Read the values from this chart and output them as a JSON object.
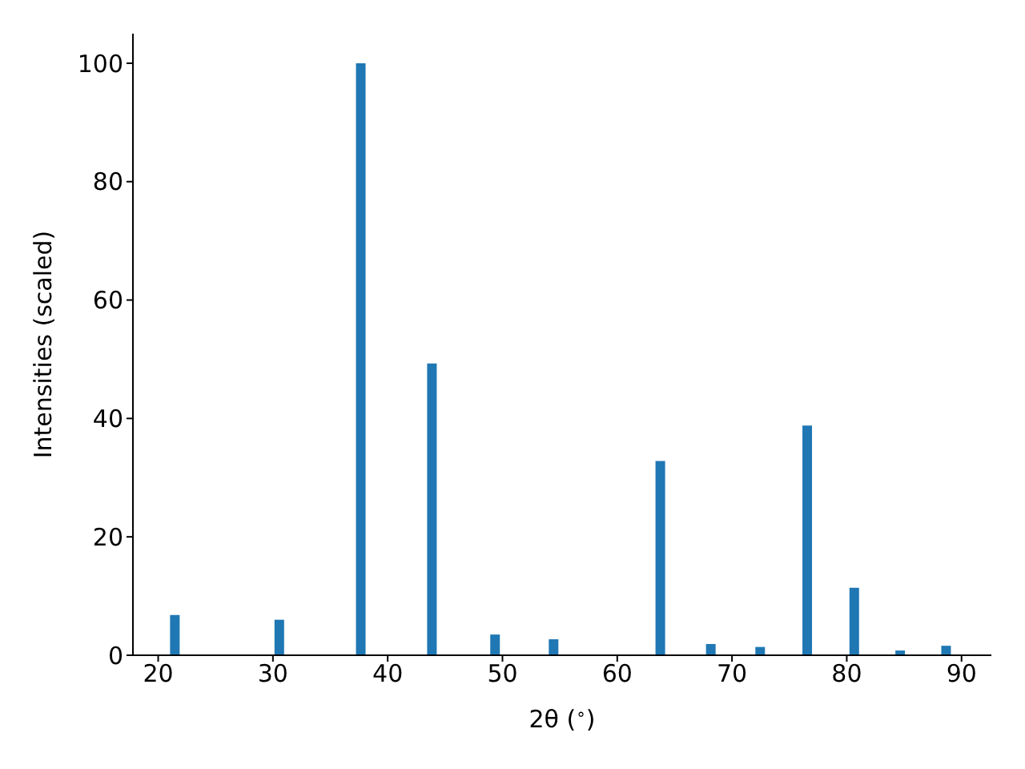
{
  "chart_data": {
    "type": "bar",
    "xlabel": "2θ ($^{∘}$)",
    "ylabel": "Intensities (scaled)",
    "x": [
      21.5,
      30.6,
      37.7,
      43.9,
      49.4,
      54.5,
      63.8,
      68.2,
      72.5,
      76.6,
      80.7,
      84.7,
      88.7
    ],
    "values": [
      6.8,
      6.0,
      100,
      49.3,
      3.5,
      2.7,
      32.8,
      1.9,
      1.4,
      38.8,
      11.4,
      0.8,
      1.6
    ],
    "color": "#1f77b4",
    "xlim": [
      17.8,
      92.6
    ],
    "xticks": [
      20,
      30,
      40,
      50,
      60,
      70,
      80,
      90
    ],
    "ylim": [
      0,
      105
    ],
    "yticks": [
      0,
      20,
      40,
      60,
      80,
      100
    ],
    "grid": false,
    "legend": false
  }
}
